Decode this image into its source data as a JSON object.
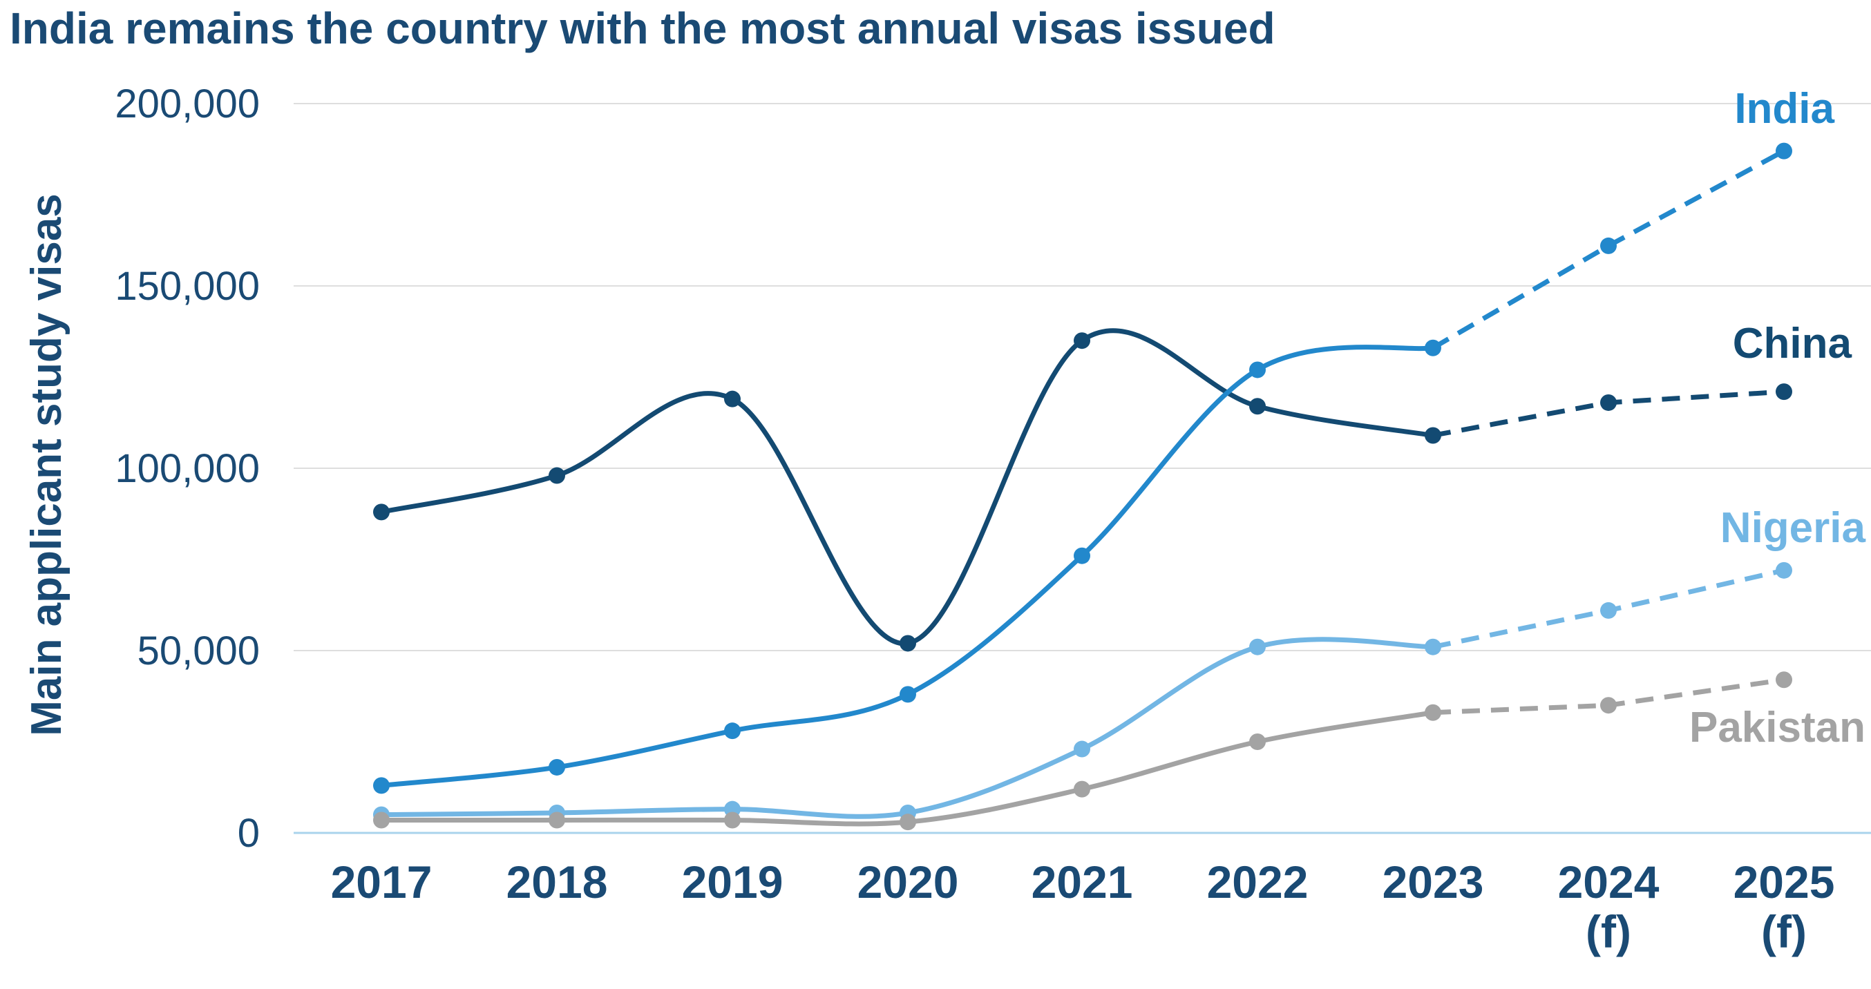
{
  "chart_data": {
    "type": "line",
    "title": "India remains the country with the most annual visas issued",
    "ylabel": "Main applicant study visas",
    "xlabel": "",
    "categories": [
      "2017",
      "2018",
      "2019",
      "2020",
      "2021",
      "2022",
      "2023",
      "2024\n(f)",
      "2025\n(f)"
    ],
    "yticks": [
      "0",
      "50,000",
      "100,000",
      "150,000",
      "200,000"
    ],
    "ylim": [
      0,
      200000
    ],
    "grid": true,
    "forecast_from_index": 6,
    "series": [
      {
        "name": "China",
        "color": "#134a72",
        "values": [
          88000,
          98000,
          119000,
          52000,
          135000,
          117000,
          109000,
          118000,
          121000
        ]
      },
      {
        "name": "India",
        "color": "#2288cc",
        "values": [
          13000,
          18000,
          28000,
          38000,
          76000,
          127000,
          133000,
          161000,
          187000
        ]
      },
      {
        "name": "Nigeria",
        "color": "#72b6e4",
        "values": [
          5000,
          5500,
          6500,
          5500,
          23000,
          51000,
          51000,
          61000,
          72000
        ]
      },
      {
        "name": "Pakistan",
        "color": "#a3a3a3",
        "values": [
          3500,
          3500,
          3500,
          3000,
          12000,
          25000,
          33000,
          35000,
          42000
        ]
      }
    ]
  }
}
